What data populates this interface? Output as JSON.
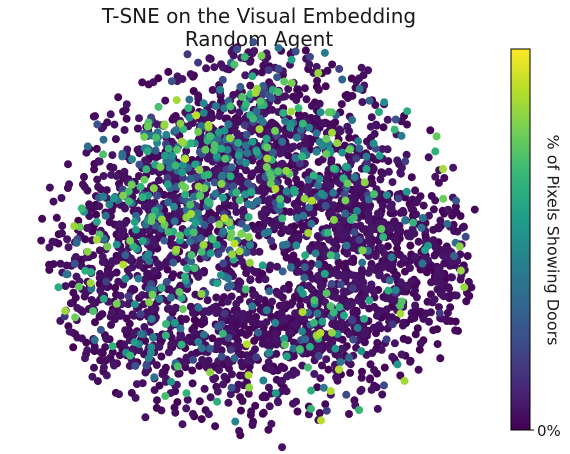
{
  "chart_data": {
    "type": "scatter",
    "title_line1": "T-SNE on the Visual Embedding",
    "title_line2": "Random Agent",
    "xlabel": "",
    "ylabel": "",
    "axes_visible": false,
    "colormap": "viridis",
    "colormap_stops": [
      "#440154",
      "#482878",
      "#3e4a89",
      "#31688e",
      "#26828e",
      "#1f9e89",
      "#35b779",
      "#6ece58",
      "#b5de2b",
      "#fde725"
    ],
    "colorbar": {
      "label": "% of Pixels Showing Doors",
      "tick_labels": [
        "0%"
      ],
      "range": [
        0,
        1
      ]
    },
    "clusters": [
      {
        "x": 0.05,
        "y": -0.55,
        "sx": 0.28,
        "sy": 0.28,
        "n": 900,
        "color_bias": 0.18
      },
      {
        "x": -0.42,
        "y": -0.2,
        "sx": 0.22,
        "sy": 0.3,
        "n": 700,
        "color_bias": 0.2
      },
      {
        "x": 0.48,
        "y": -0.05,
        "sx": 0.22,
        "sy": 0.28,
        "n": 650,
        "color_bias": 0.08
      },
      {
        "x": -0.78,
        "y": 0.15,
        "sx": 0.14,
        "sy": 0.25,
        "n": 220,
        "color_bias": 0.08
      },
      {
        "x": 0.88,
        "y": 0.1,
        "sx": 0.1,
        "sy": 0.18,
        "n": 140,
        "color_bias": 0.05
      },
      {
        "x": -0.15,
        "y": 0.45,
        "sx": 0.3,
        "sy": 0.18,
        "n": 380,
        "color_bias": 0.1
      },
      {
        "x": 0.35,
        "y": 0.45,
        "sx": 0.25,
        "sy": 0.18,
        "n": 340,
        "color_bias": 0.08
      },
      {
        "x": -0.55,
        "y": 0.6,
        "sx": 0.2,
        "sy": 0.15,
        "n": 120,
        "color_bias": 0.08
      },
      {
        "x": 0.05,
        "y": 0.85,
        "sx": 0.3,
        "sy": 0.1,
        "n": 90,
        "color_bias": 0.04
      },
      {
        "x": -0.08,
        "y": -1.05,
        "sx": 0.05,
        "sy": 0.04,
        "n": 12,
        "color_bias": 0.02
      }
    ]
  }
}
